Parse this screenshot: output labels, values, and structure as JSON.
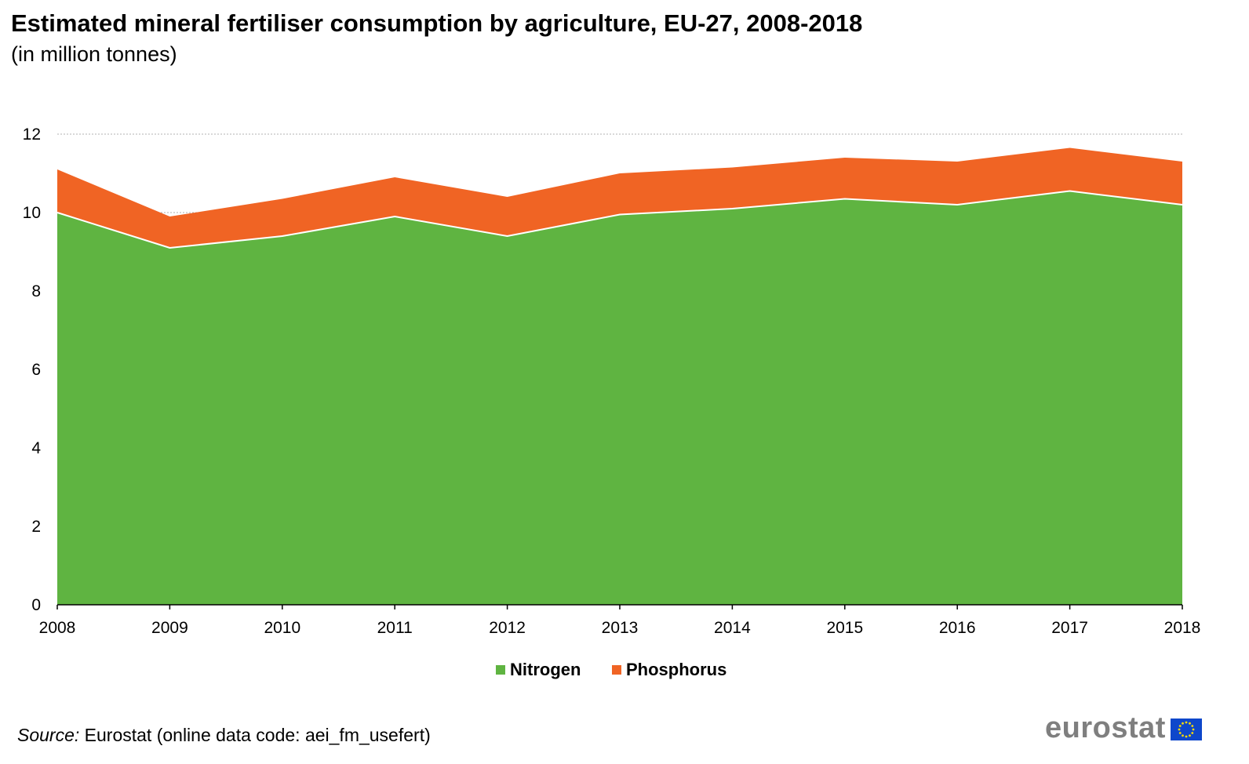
{
  "title": "Estimated mineral fertiliser consumption by agriculture, EU-27, 2008-2018",
  "subtitle": "(in million tonnes)",
  "source_label": "Source:",
  "source_text": " Eurostat (online data code: aei_fm_usefert)",
  "logo_text": "eurostat",
  "chart_data": {
    "type": "area",
    "stacked": true,
    "x": [
      "2008",
      "2009",
      "2010",
      "2011",
      "2012",
      "2013",
      "2014",
      "2015",
      "2016",
      "2017",
      "2018"
    ],
    "series": [
      {
        "name": "Nitrogen",
        "color": "#5fb441",
        "values": [
          10.0,
          9.1,
          9.4,
          9.9,
          9.4,
          9.95,
          10.1,
          10.35,
          10.2,
          10.55,
          10.2
        ]
      },
      {
        "name": "Phosphorus",
        "color": "#f06424",
        "values": [
          1.1,
          0.8,
          0.95,
          1.0,
          1.0,
          1.05,
          1.05,
          1.05,
          1.1,
          1.1,
          1.1
        ]
      }
    ],
    "yticks": [
      0,
      2,
      4,
      6,
      8,
      10,
      12
    ],
    "ylim": [
      0,
      12
    ],
    "grid": true,
    "legend_position": "bottom"
  }
}
